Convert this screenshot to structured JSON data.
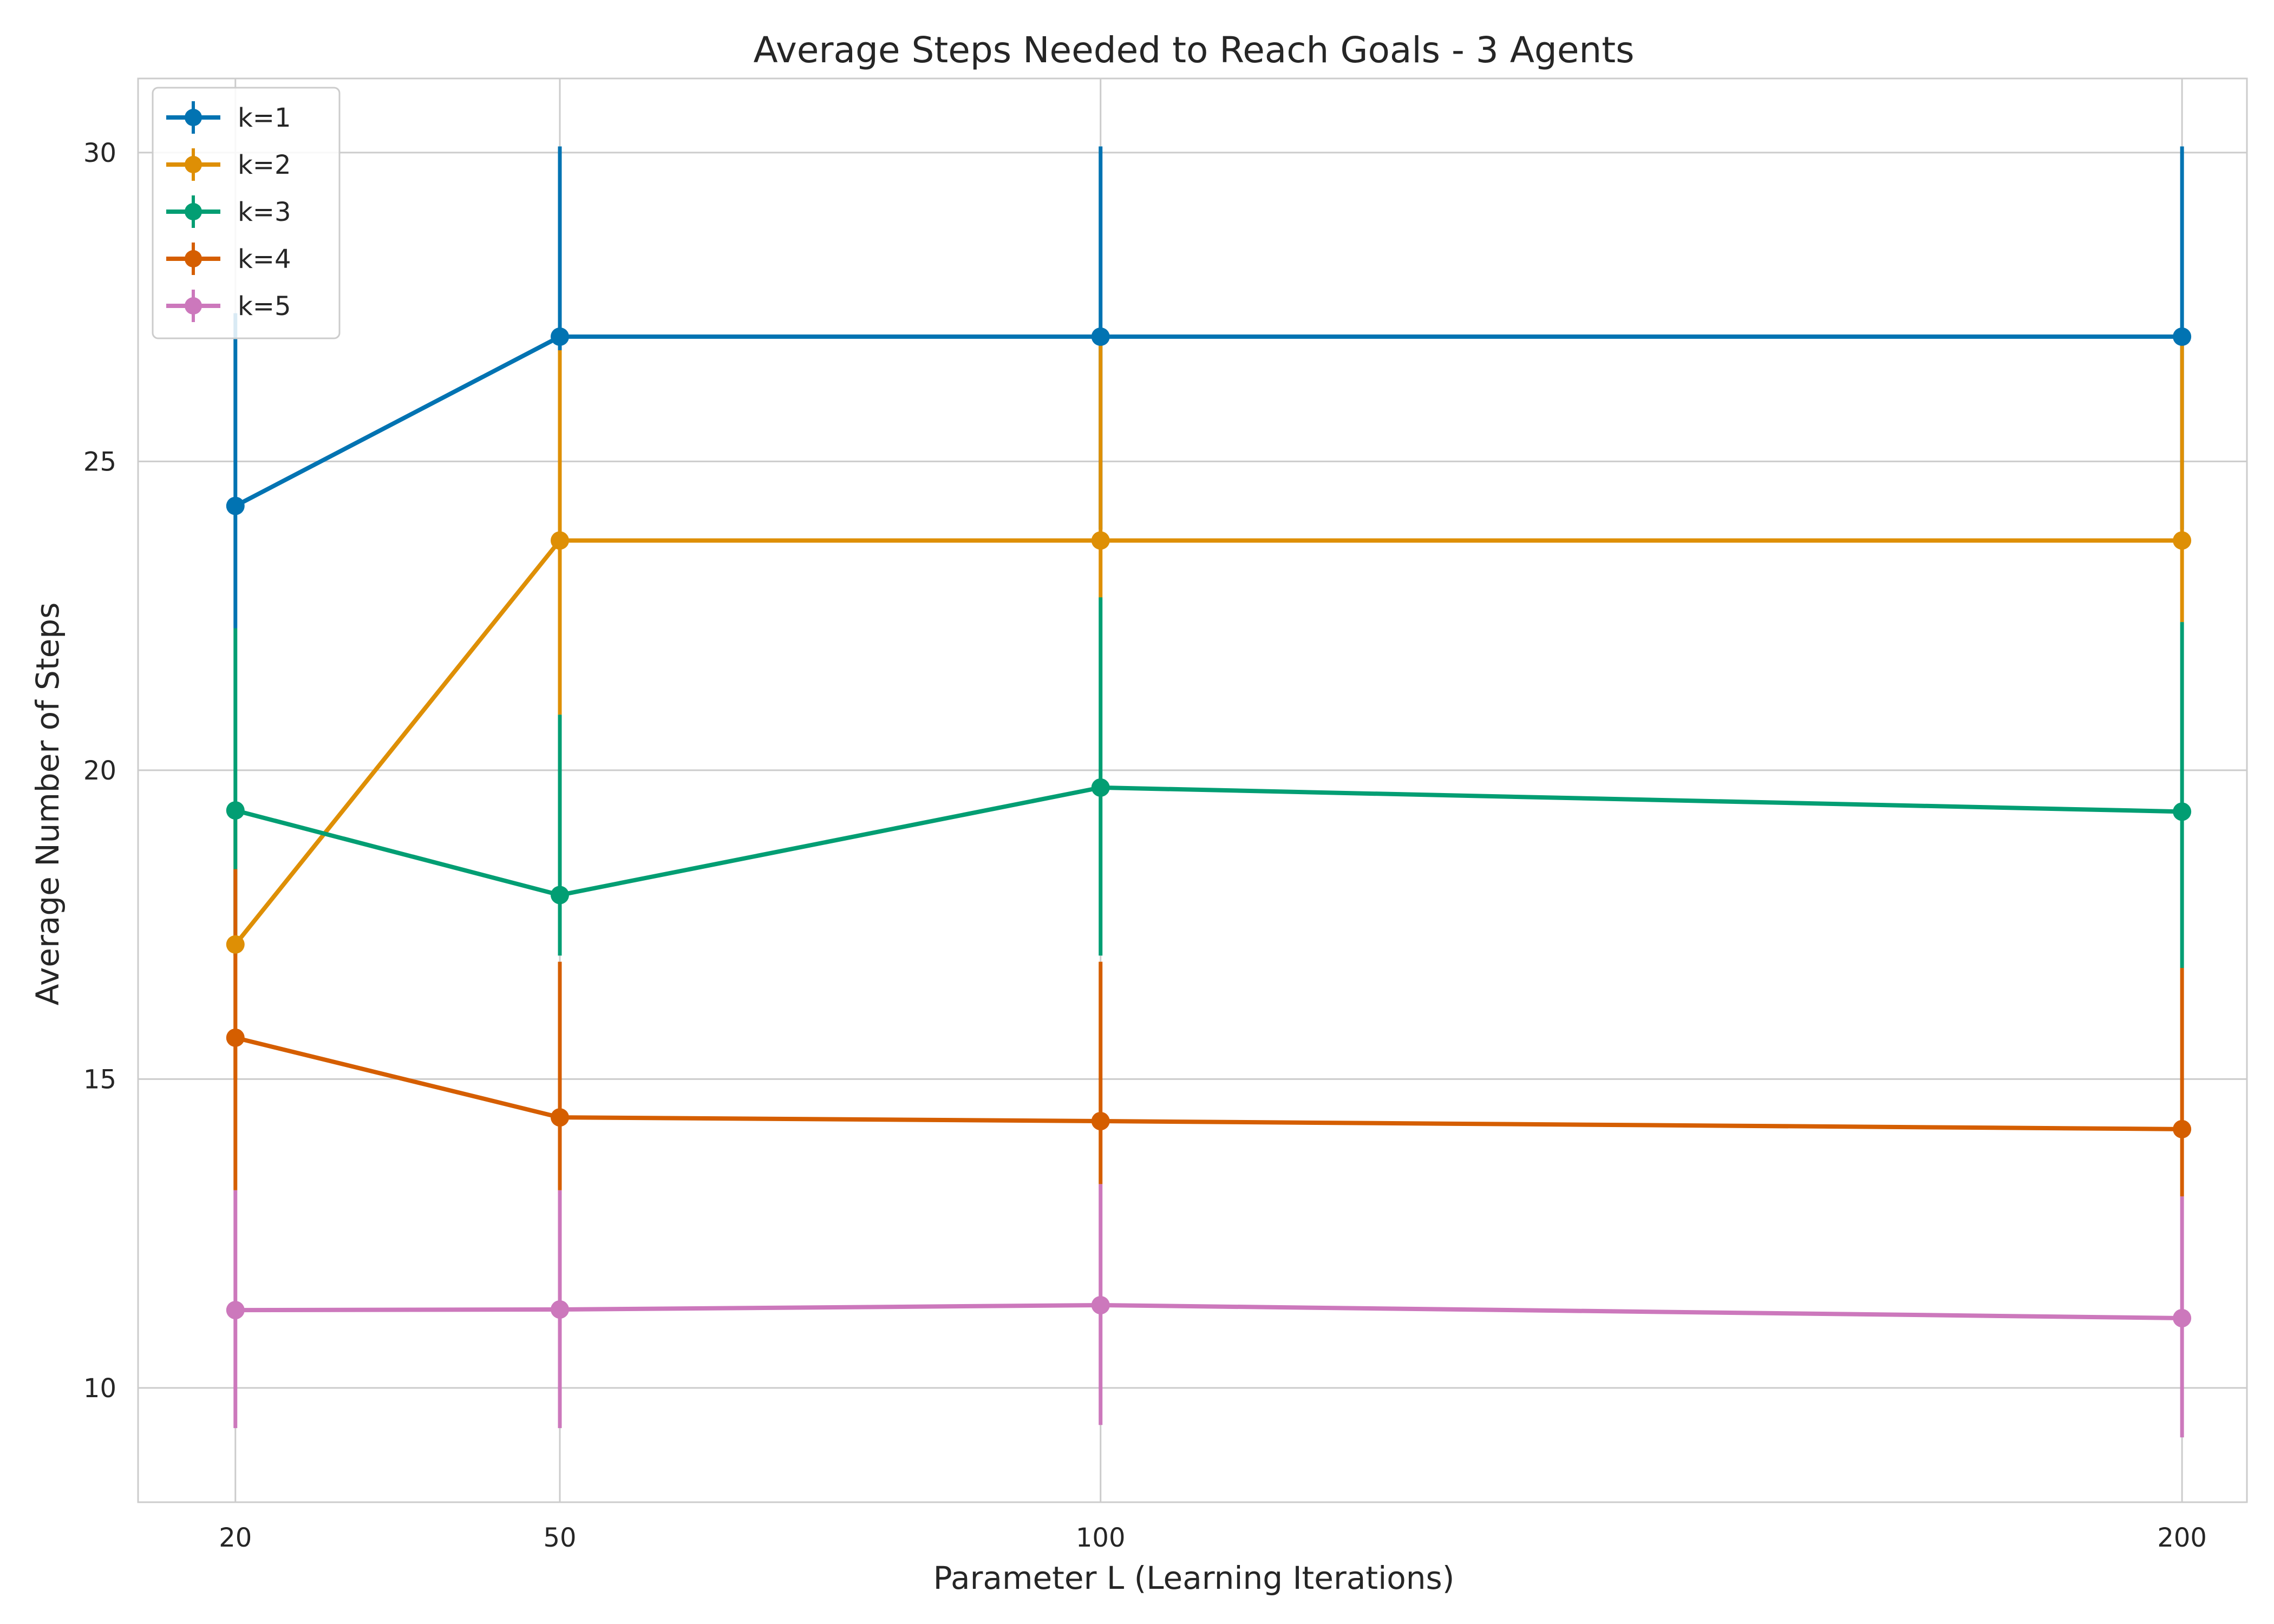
{
  "chart_data": {
    "type": "line",
    "title": "Average Steps Needed to Reach Goals - 3 Agents",
    "xlabel": "Parameter L (Learning Iterations)",
    "ylabel": "Average Number of Steps",
    "x": [
      20,
      50,
      100,
      200
    ],
    "xlim": [
      11,
      206
    ],
    "ylim": [
      8.15,
      31.2
    ],
    "yticks": [
      10,
      15,
      20,
      25,
      30
    ],
    "grid": true,
    "legend_position": "top-left",
    "series": [
      {
        "name": "k=1",
        "color": "#0173b2",
        "values": [
          24.28,
          27.02,
          27.02,
          27.02
        ],
        "err_low": [
          22.3,
          23.9,
          23.9,
          23.9
        ],
        "err_high": [
          27.4,
          30.1,
          30.1,
          30.1
        ]
      },
      {
        "name": "k=2",
        "color": "#de8f05",
        "values": [
          17.18,
          23.72,
          23.72,
          23.72
        ],
        "err_low": [
          15.0,
          20.9,
          22.8,
          22.4
        ],
        "err_high": [
          19.3,
          26.8,
          26.9,
          27.0
        ]
      },
      {
        "name": "k=3",
        "color": "#029e73",
        "values": [
          19.35,
          17.98,
          19.72,
          19.33
        ],
        "err_low": [
          17.0,
          17.0,
          17.0,
          16.8
        ],
        "err_high": [
          22.3,
          20.9,
          22.8,
          22.4
        ]
      },
      {
        "name": "k=4",
        "color": "#d55e00",
        "values": [
          15.67,
          14.38,
          14.32,
          14.19
        ],
        "err_low": [
          13.2,
          13.2,
          13.3,
          13.1
        ],
        "err_high": [
          18.4,
          16.9,
          16.9,
          16.8
        ]
      },
      {
        "name": "k=5",
        "color": "#cc78bc",
        "values": [
          11.26,
          11.27,
          11.34,
          11.13
        ],
        "err_low": [
          9.35,
          9.35,
          9.4,
          9.2
        ],
        "err_high": [
          13.2,
          13.2,
          13.3,
          13.1
        ]
      }
    ]
  }
}
